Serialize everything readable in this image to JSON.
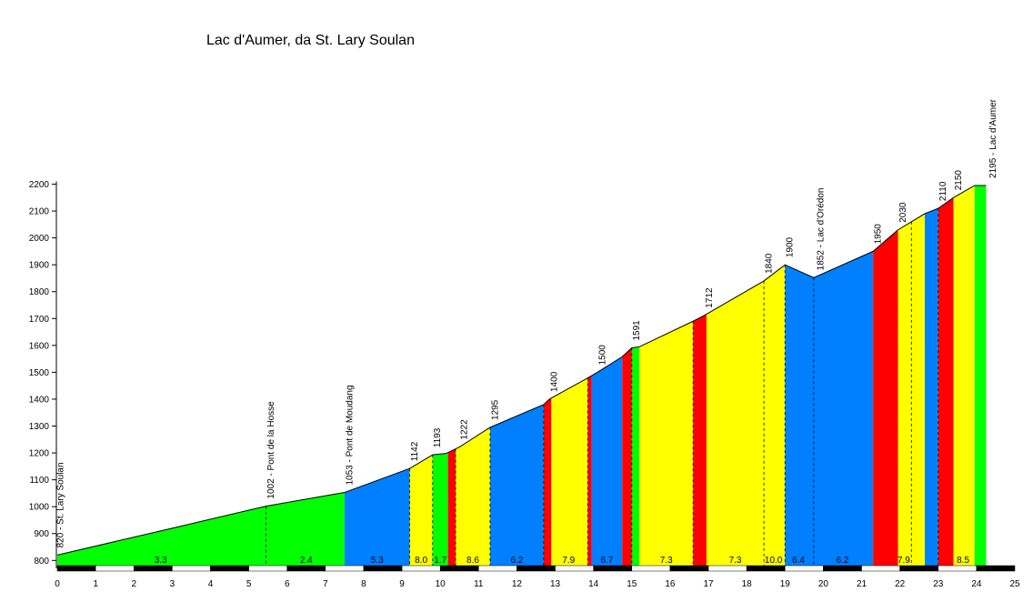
{
  "chart_data": {
    "type": "area",
    "title": "Lac d'Aumer, da St. Lary Soulan",
    "xlabel": "",
    "ylabel": "",
    "xlim": [
      0,
      25
    ],
    "ylim": [
      800,
      2200
    ],
    "y_baseline": 770,
    "grid": false,
    "legend": "none",
    "x_ticks": [
      0,
      1,
      2,
      3,
      4,
      5,
      6,
      7,
      8,
      9,
      10,
      11,
      12,
      13,
      14,
      15,
      16,
      17,
      18,
      19,
      20,
      21,
      22,
      23,
      24,
      25
    ],
    "y_ticks": [
      800,
      900,
      1000,
      1100,
      1200,
      1300,
      1400,
      1500,
      1600,
      1700,
      1800,
      1900,
      2000,
      2100,
      2200
    ],
    "profile": [
      {
        "km": 0,
        "alt": 820
      },
      {
        "km": 3.0,
        "alt": 920
      },
      {
        "km": 5.45,
        "alt": 1002
      },
      {
        "km": 7.5,
        "alt": 1053
      },
      {
        "km": 9.2,
        "alt": 1142
      },
      {
        "km": 9.8,
        "alt": 1193
      },
      {
        "km": 10.15,
        "alt": 1198
      },
      {
        "km": 10.5,
        "alt": 1222
      },
      {
        "km": 11.3,
        "alt": 1295
      },
      {
        "km": 12.7,
        "alt": 1380
      },
      {
        "km": 12.85,
        "alt": 1400
      },
      {
        "km": 13.8,
        "alt": 1475
      },
      {
        "km": 14.1,
        "alt": 1500
      },
      {
        "km": 14.75,
        "alt": 1558
      },
      {
        "km": 15.0,
        "alt": 1591
      },
      {
        "km": 15.2,
        "alt": 1595
      },
      {
        "km": 16.6,
        "alt": 1690
      },
      {
        "km": 16.9,
        "alt": 1712
      },
      {
        "km": 18.45,
        "alt": 1840
      },
      {
        "km": 19.0,
        "alt": 1900
      },
      {
        "km": 19.75,
        "alt": 1852
      },
      {
        "km": 21.3,
        "alt": 1950
      },
      {
        "km": 21.95,
        "alt": 2030
      },
      {
        "km": 22.65,
        "alt": 2090
      },
      {
        "km": 23.0,
        "alt": 2110
      },
      {
        "km": 23.4,
        "alt": 2150
      },
      {
        "km": 23.95,
        "alt": 2195
      },
      {
        "km": 24.25,
        "alt": 2195
      }
    ],
    "segments": [
      {
        "from": 0,
        "to": 7.5,
        "color": "#00ff00"
      },
      {
        "from": 7.5,
        "to": 9.2,
        "color": "#0080ff"
      },
      {
        "from": 9.2,
        "to": 9.8,
        "color": "#ffff00"
      },
      {
        "from": 9.8,
        "to": 10.2,
        "color": "#00ff00"
      },
      {
        "from": 10.2,
        "to": 10.4,
        "color": "#ff0000"
      },
      {
        "from": 10.4,
        "to": 11.3,
        "color": "#ffff00"
      },
      {
        "from": 11.3,
        "to": 12.7,
        "color": "#0080ff"
      },
      {
        "from": 12.7,
        "to": 12.9,
        "color": "#ff0000"
      },
      {
        "from": 12.9,
        "to": 13.85,
        "color": "#ffff00"
      },
      {
        "from": 13.85,
        "to": 13.95,
        "color": "#ff0000"
      },
      {
        "from": 13.95,
        "to": 14.75,
        "color": "#0080ff"
      },
      {
        "from": 14.75,
        "to": 15.0,
        "color": "#ff0000"
      },
      {
        "from": 15.0,
        "to": 15.2,
        "color": "#00ff00"
      },
      {
        "from": 15.2,
        "to": 16.6,
        "color": "#ffff00"
      },
      {
        "from": 16.6,
        "to": 16.95,
        "color": "#ff0000"
      },
      {
        "from": 16.95,
        "to": 19.0,
        "color": "#ffff00"
      },
      {
        "from": 19.0,
        "to": 21.3,
        "color": "#0080ff"
      },
      {
        "from": 21.3,
        "to": 21.95,
        "color": "#ff0000"
      },
      {
        "from": 21.95,
        "to": 22.65,
        "color": "#ffff00"
      },
      {
        "from": 22.65,
        "to": 23.0,
        "color": "#0080ff"
      },
      {
        "from": 23.0,
        "to": 23.4,
        "color": "#ff0000"
      },
      {
        "from": 23.4,
        "to": 23.95,
        "color": "#ffff00"
      },
      {
        "from": 23.95,
        "to": 24.25,
        "color": "#00ff00"
      }
    ],
    "dashed_markers": [
      5.45,
      9.2,
      9.8,
      10.4,
      11.3,
      12.7,
      13.85,
      15.0,
      16.6,
      18.45,
      19.0,
      19.75,
      22.3,
      23.0
    ],
    "gradient_labels": [
      {
        "km": 2.7,
        "text": "3.3"
      },
      {
        "km": 6.5,
        "text": "2.4"
      },
      {
        "km": 8.35,
        "text": "5.3"
      },
      {
        "km": 9.5,
        "text": "8.0"
      },
      {
        "km": 10.0,
        "text": "1.7"
      },
      {
        "km": 10.85,
        "text": "8.6"
      },
      {
        "km": 12.0,
        "text": "6.2"
      },
      {
        "km": 13.35,
        "text": "7.9"
      },
      {
        "km": 14.35,
        "text": "6.7"
      },
      {
        "km": 15.9,
        "text": "7.3"
      },
      {
        "km": 17.7,
        "text": "7.3"
      },
      {
        "km": 18.7,
        "text": "10.0"
      },
      {
        "km": 19.35,
        "text": "6.4"
      },
      {
        "km": 20.5,
        "text": "6.2"
      },
      {
        "km": 22.1,
        "text": "7.9"
      },
      {
        "km": 23.65,
        "text": "8.5"
      }
    ],
    "elevation_labels": [
      {
        "km": 0.15,
        "alt": 820,
        "text": "820 - St. Lary Soulan"
      },
      {
        "km": 5.65,
        "alt": 1002,
        "text": "1002 - Pont de la Hosse"
      },
      {
        "km": 7.7,
        "alt": 1053,
        "text": "1053 - Pont de Moudang"
      },
      {
        "km": 9.4,
        "alt": 1142,
        "text": "1142"
      },
      {
        "km": 10.0,
        "alt": 1193,
        "text": "1193"
      },
      {
        "km": 10.7,
        "alt": 1222,
        "text": "1222"
      },
      {
        "km": 11.5,
        "alt": 1295,
        "text": "1295"
      },
      {
        "km": 13.05,
        "alt": 1400,
        "text": "1400"
      },
      {
        "km": 14.3,
        "alt": 1500,
        "text": "1500"
      },
      {
        "km": 15.2,
        "alt": 1591,
        "text": "1591"
      },
      {
        "km": 17.1,
        "alt": 1712,
        "text": "1712"
      },
      {
        "km": 18.65,
        "alt": 1840,
        "text": "1840"
      },
      {
        "km": 19.2,
        "alt": 1900,
        "text": "1900"
      },
      {
        "km": 20.0,
        "alt": 1852,
        "text": "1852 - Lac d'Orédon"
      },
      {
        "km": 21.5,
        "alt": 1950,
        "text": "1950"
      },
      {
        "km": 22.15,
        "alt": 2030,
        "text": "2030"
      },
      {
        "km": 23.2,
        "alt": 2110,
        "text": "2110"
      },
      {
        "km": 23.6,
        "alt": 2150,
        "text": "2150"
      },
      {
        "km": 24.5,
        "alt": 2195,
        "text": "2195 - Lac d'Aumer"
      }
    ]
  }
}
